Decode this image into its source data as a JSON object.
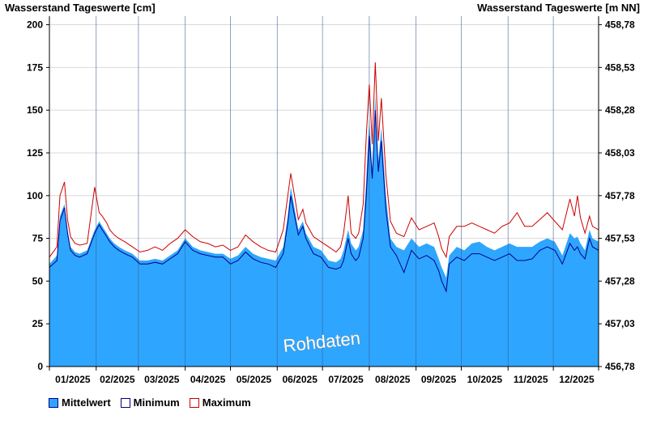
{
  "chart_data": {
    "type": "area",
    "title_left": "Wasserstand Tageswerte [cm]",
    "title_right": "Wasserstand Tageswerte [m NN]",
    "watermark": "Rohdaten",
    "y_left": {
      "lim": [
        0,
        205
      ],
      "ticks": [
        0,
        25,
        50,
        75,
        100,
        125,
        150,
        175,
        200
      ]
    },
    "y_right": {
      "labels": [
        "456,78",
        "457,03",
        "457,28",
        "457,53",
        "457,78",
        "458,03",
        "458,28",
        "458,53",
        "458,78"
      ]
    },
    "x_ticks": [
      "01/2025",
      "02/2025",
      "03/2025",
      "04/2025",
      "05/2025",
      "06/2025",
      "07/2025",
      "08/2025",
      "09/2025",
      "10/2025",
      "11/2025",
      "12/2025"
    ],
    "grid": true,
    "colors": {
      "mean": "#2ea6ff",
      "min": "#00008b",
      "max": "#cc0000"
    },
    "series": [
      {
        "name": "Mittelwert",
        "key": "mean",
        "days": [
          0,
          5,
          7,
          10,
          12,
          14,
          17,
          20,
          25,
          30,
          33,
          35,
          38,
          40,
          43,
          46,
          50,
          55,
          60,
          65,
          70,
          75,
          80,
          85,
          90,
          95,
          100,
          105,
          110,
          115,
          120,
          125,
          130,
          135,
          140,
          145,
          150,
          155,
          158,
          160,
          163,
          165,
          168,
          170,
          175,
          180,
          185,
          190,
          193,
          195,
          198,
          200,
          203,
          205,
          208,
          210,
          212,
          214,
          216,
          218,
          220,
          223,
          226,
          230,
          235,
          240,
          245,
          250,
          255,
          258,
          260,
          263,
          265,
          270,
          275,
          280,
          285,
          290,
          295,
          300,
          305,
          310,
          315,
          320,
          325,
          330,
          335,
          340,
          345,
          348,
          350,
          352,
          355,
          358,
          360,
          364
        ],
        "values": [
          60,
          65,
          88,
          95,
          80,
          70,
          67,
          66,
          68,
          80,
          85,
          82,
          78,
          75,
          72,
          70,
          68,
          66,
          62,
          62,
          63,
          62,
          65,
          68,
          75,
          70,
          68,
          67,
          66,
          66,
          63,
          65,
          70,
          66,
          64,
          63,
          62,
          70,
          88,
          105,
          90,
          80,
          85,
          78,
          70,
          68,
          62,
          61,
          63,
          68,
          80,
          72,
          68,
          70,
          80,
          110,
          145,
          115,
          158,
          120,
          140,
          100,
          75,
          70,
          68,
          75,
          70,
          72,
          70,
          63,
          58,
          52,
          65,
          70,
          68,
          72,
          73,
          70,
          68,
          70,
          72,
          70,
          70,
          70,
          73,
          75,
          73,
          65,
          78,
          75,
          76,
          72,
          68,
          80,
          75,
          73
        ]
      },
      {
        "name": "Minimum",
        "key": "min",
        "days": [
          0,
          5,
          7,
          10,
          12,
          14,
          17,
          20,
          25,
          30,
          33,
          35,
          38,
          40,
          43,
          46,
          50,
          55,
          60,
          65,
          70,
          75,
          80,
          85,
          90,
          95,
          100,
          105,
          110,
          115,
          120,
          125,
          130,
          135,
          140,
          145,
          150,
          155,
          158,
          160,
          163,
          165,
          168,
          170,
          175,
          180,
          185,
          190,
          193,
          195,
          198,
          200,
          203,
          205,
          208,
          210,
          212,
          214,
          216,
          218,
          220,
          223,
          226,
          230,
          235,
          240,
          245,
          250,
          255,
          258,
          260,
          263,
          265,
          270,
          275,
          280,
          285,
          290,
          295,
          300,
          305,
          310,
          315,
          320,
          325,
          330,
          335,
          340,
          345,
          348,
          350,
          352,
          355,
          358,
          360,
          364
        ],
        "values": [
          58,
          62,
          85,
          93,
          78,
          68,
          65,
          64,
          66,
          78,
          83,
          80,
          76,
          73,
          70,
          68,
          66,
          64,
          60,
          60,
          61,
          60,
          63,
          66,
          73,
          68,
          66,
          65,
          64,
          64,
          60,
          62,
          67,
          63,
          61,
          60,
          58,
          66,
          84,
          100,
          86,
          77,
          82,
          75,
          66,
          64,
          58,
          57,
          58,
          62,
          75,
          66,
          62,
          64,
          75,
          100,
          135,
          110,
          150,
          114,
          132,
          92,
          70,
          65,
          55,
          68,
          63,
          65,
          62,
          56,
          50,
          44,
          60,
          64,
          62,
          66,
          66,
          64,
          62,
          64,
          66,
          62,
          62,
          63,
          68,
          70,
          68,
          60,
          72,
          68,
          70,
          66,
          63,
          75,
          70,
          68
        ]
      },
      {
        "name": "Maximum",
        "key": "max",
        "days": [
          0,
          5,
          7,
          10,
          12,
          14,
          17,
          20,
          25,
          30,
          33,
          35,
          38,
          40,
          43,
          46,
          50,
          55,
          60,
          65,
          70,
          75,
          80,
          85,
          90,
          95,
          100,
          105,
          110,
          115,
          120,
          125,
          130,
          135,
          140,
          145,
          150,
          155,
          158,
          160,
          163,
          165,
          168,
          170,
          175,
          180,
          185,
          190,
          193,
          195,
          198,
          200,
          203,
          205,
          208,
          210,
          212,
          214,
          216,
          218,
          220,
          223,
          226,
          230,
          235,
          240,
          245,
          250,
          255,
          258,
          260,
          263,
          265,
          270,
          275,
          280,
          285,
          290,
          295,
          300,
          305,
          310,
          315,
          320,
          325,
          330,
          335,
          340,
          345,
          348,
          350,
          352,
          355,
          358,
          360,
          364
        ],
        "values": [
          64,
          70,
          100,
          108,
          86,
          76,
          72,
          71,
          72,
          105,
          90,
          88,
          84,
          80,
          77,
          75,
          73,
          70,
          67,
          68,
          70,
          68,
          72,
          75,
          80,
          76,
          73,
          72,
          70,
          71,
          68,
          70,
          77,
          73,
          70,
          68,
          67,
          80,
          100,
          113,
          97,
          86,
          92,
          84,
          76,
          73,
          70,
          67,
          70,
          78,
          100,
          78,
          75,
          78,
          95,
          135,
          165,
          130,
          178,
          132,
          157,
          112,
          85,
          78,
          76,
          87,
          80,
          82,
          84,
          76,
          69,
          64,
          76,
          82,
          82,
          84,
          82,
          80,
          78,
          82,
          84,
          90,
          82,
          82,
          86,
          90,
          85,
          80,
          98,
          88,
          100,
          87,
          78,
          88,
          82,
          80
        ]
      }
    ]
  },
  "legend": [
    {
      "label": "Mittelwert",
      "fill": "#2ea6ff",
      "border": "#00008b"
    },
    {
      "label": "Minimum",
      "fill": "#ffffff",
      "border": "#00008b"
    },
    {
      "label": "Maximum",
      "fill": "#ffffff",
      "border": "#cc0000"
    }
  ]
}
